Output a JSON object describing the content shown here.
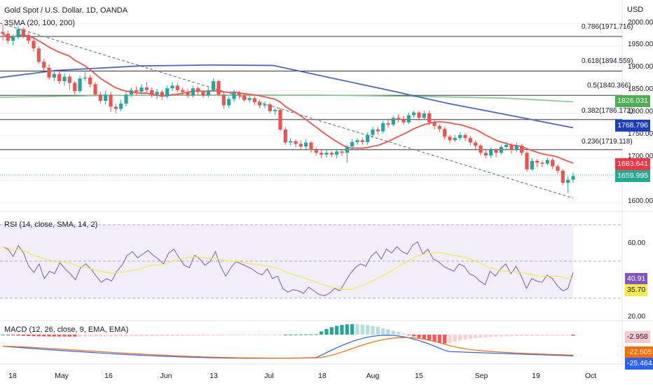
{
  "header": {
    "title": "Gold Spot / U.S. Dollar, 1D, OANDA",
    "indicator": "3SMA (20, 100, 200)",
    "currency": "USD"
  },
  "price_axis": [
    "2000.000",
    "1950.000",
    "1900.000",
    "1850.000",
    "1800.000",
    "1750.000",
    "1700.000",
    "1600.000"
  ],
  "fib_levels": [
    {
      "label": "0.786(1971.716)",
      "value": 1971.716
    },
    {
      "label": "0.618(1894.559)",
      "value": 1894.559
    },
    {
      "label": "0.5(1840.366)",
      "value": 1840.366
    },
    {
      "label": "0.382(1786.172)",
      "value": 1786.172
    },
    {
      "label": "0.236(1719.118)",
      "value": 1719.118
    }
  ],
  "tags": {
    "sma200": {
      "text": "1826.031",
      "color": "#4caf50"
    },
    "sma100": {
      "text": "1768.796",
      "color": "#1e3fbe"
    },
    "sma20": {
      "text": "1683.641",
      "color": "#f23645"
    },
    "price": {
      "text": "1659.995",
      "color": "#22ab94"
    },
    "rsi": {
      "text": "40.91",
      "color": "#7e57c2"
    },
    "rsi_ma": {
      "text": "35.70",
      "color": "#f5e94c"
    },
    "macd_hist": {
      "text": "-2.958",
      "color": "#f8c9d0"
    },
    "signal": {
      "text": "-22.505",
      "color": "#ff6d00"
    },
    "macd": {
      "text": "-25.464",
      "color": "#2962ff"
    }
  },
  "rsi": {
    "label": "RSI (14, close, SMA, 14, 2)",
    "axis": [
      "60.00",
      "20.00"
    ]
  },
  "macd": {
    "label": "MACD (12, 26, close, 9, EMA, EMA)"
  },
  "dates": [
    "18",
    "May",
    "16",
    "Jun",
    "13",
    "Jul",
    "18",
    "Aug",
    "15",
    "Sep",
    "19",
    "Oct"
  ],
  "colors": {
    "up": "#26a69a",
    "down": "#ef5350",
    "sma20": "#f05350",
    "sma100": "#4a67c8",
    "sma200": "#81c784"
  },
  "chart_data": {
    "type": "candlestick",
    "candles": [
      [
        1982,
        1978,
        1998,
        1962
      ],
      [
        1978,
        1962,
        1985,
        1955
      ],
      [
        1962,
        1970,
        1976,
        1952
      ],
      [
        1970,
        1988,
        1995,
        1965
      ],
      [
        1988,
        1975,
        1992,
        1968
      ],
      [
        1975,
        1962,
        1980,
        1955
      ],
      [
        1962,
        1945,
        1968,
        1938
      ],
      [
        1945,
        1915,
        1950,
        1910
      ],
      [
        1915,
        1902,
        1922,
        1895
      ],
      [
        1902,
        1880,
        1910,
        1875
      ],
      [
        1880,
        1888,
        1894,
        1872
      ],
      [
        1888,
        1872,
        1896,
        1866
      ],
      [
        1872,
        1882,
        1890,
        1862
      ],
      [
        1882,
        1868,
        1888,
        1852
      ],
      [
        1868,
        1850,
        1872,
        1842
      ],
      [
        1850,
        1878,
        1884,
        1846
      ],
      [
        1878,
        1880,
        1892,
        1872
      ],
      [
        1880,
        1865,
        1886,
        1858
      ],
      [
        1865,
        1842,
        1870,
        1838
      ],
      [
        1842,
        1828,
        1848,
        1822
      ],
      [
        1828,
        1842,
        1850,
        1820
      ],
      [
        1842,
        1815,
        1848,
        1804
      ],
      [
        1815,
        1810,
        1822,
        1800
      ],
      [
        1810,
        1822,
        1830,
        1805
      ],
      [
        1822,
        1842,
        1848,
        1816
      ],
      [
        1842,
        1852,
        1858,
        1836
      ],
      [
        1852,
        1848,
        1860,
        1840
      ],
      [
        1848,
        1858,
        1865,
        1842
      ],
      [
        1858,
        1852,
        1870,
        1845
      ],
      [
        1852,
        1842,
        1858,
        1835
      ],
      [
        1842,
        1848,
        1855,
        1832
      ],
      [
        1848,
        1838,
        1852,
        1830
      ],
      [
        1838,
        1856,
        1862,
        1834
      ],
      [
        1856,
        1862,
        1870,
        1850
      ],
      [
        1862,
        1852,
        1868,
        1846
      ],
      [
        1852,
        1848,
        1858,
        1840
      ],
      [
        1848,
        1840,
        1855,
        1835
      ],
      [
        1840,
        1856,
        1862,
        1836
      ],
      [
        1856,
        1848,
        1860,
        1842
      ],
      [
        1848,
        1840,
        1852,
        1835
      ],
      [
        1840,
        1852,
        1858,
        1835
      ],
      [
        1852,
        1872,
        1878,
        1848
      ],
      [
        1872,
        1842,
        1875,
        1838
      ],
      [
        1842,
        1818,
        1846,
        1810
      ],
      [
        1818,
        1832,
        1838,
        1812
      ],
      [
        1832,
        1846,
        1852,
        1826
      ],
      [
        1846,
        1840,
        1850,
        1832
      ],
      [
        1840,
        1830,
        1845,
        1826
      ],
      [
        1830,
        1834,
        1840,
        1824
      ],
      [
        1834,
        1825,
        1838,
        1818
      ],
      [
        1825,
        1818,
        1830,
        1812
      ],
      [
        1818,
        1820,
        1826,
        1812
      ],
      [
        1820,
        1805,
        1824,
        1800
      ],
      [
        1805,
        1808,
        1812,
        1796
      ],
      [
        1808,
        1764,
        1812,
        1760
      ],
      [
        1764,
        1735,
        1770,
        1730
      ],
      [
        1735,
        1738,
        1745,
        1728
      ],
      [
        1738,
        1732,
        1742,
        1725
      ],
      [
        1732,
        1726,
        1740,
        1720
      ],
      [
        1726,
        1735,
        1742,
        1720
      ],
      [
        1735,
        1718,
        1738,
        1712
      ],
      [
        1718,
        1712,
        1724,
        1706
      ],
      [
        1712,
        1708,
        1718,
        1700
      ],
      [
        1708,
        1712,
        1718,
        1702
      ],
      [
        1712,
        1708,
        1716,
        1702
      ],
      [
        1708,
        1715,
        1720,
        1700
      ],
      [
        1715,
        1712,
        1718,
        1705
      ],
      [
        1712,
        1726,
        1730,
        1690
      ],
      [
        1726,
        1736,
        1742,
        1720
      ],
      [
        1736,
        1740,
        1745,
        1730
      ],
      [
        1740,
        1736,
        1746,
        1730
      ],
      [
        1736,
        1752,
        1758,
        1730
      ],
      [
        1752,
        1764,
        1770,
        1745
      ],
      [
        1764,
        1760,
        1770,
        1752
      ],
      [
        1760,
        1778,
        1784,
        1755
      ],
      [
        1778,
        1775,
        1786,
        1768
      ],
      [
        1775,
        1790,
        1795,
        1770
      ],
      [
        1790,
        1788,
        1798,
        1780
      ],
      [
        1788,
        1780,
        1795,
        1775
      ],
      [
        1780,
        1796,
        1802,
        1776
      ],
      [
        1796,
        1802,
        1806,
        1790
      ],
      [
        1802,
        1790,
        1806,
        1784
      ],
      [
        1790,
        1800,
        1806,
        1786
      ],
      [
        1800,
        1780,
        1806,
        1774
      ],
      [
        1780,
        1772,
        1786,
        1764
      ],
      [
        1772,
        1765,
        1776,
        1758
      ],
      [
        1765,
        1748,
        1770,
        1742
      ],
      [
        1748,
        1740,
        1752,
        1734
      ],
      [
        1740,
        1745,
        1752,
        1736
      ],
      [
        1745,
        1752,
        1758,
        1740
      ],
      [
        1752,
        1745,
        1756,
        1738
      ],
      [
        1745,
        1735,
        1750,
        1728
      ],
      [
        1735,
        1728,
        1740,
        1720
      ],
      [
        1728,
        1712,
        1732,
        1706
      ],
      [
        1712,
        1706,
        1718,
        1700
      ],
      [
        1706,
        1718,
        1724,
        1700
      ],
      [
        1718,
        1712,
        1722,
        1702
      ],
      [
        1712,
        1725,
        1730,
        1708
      ],
      [
        1725,
        1730,
        1736,
        1718
      ],
      [
        1730,
        1718,
        1734,
        1710
      ],
      [
        1718,
        1728,
        1735,
        1714
      ],
      [
        1728,
        1712,
        1732,
        1706
      ],
      [
        1712,
        1675,
        1716,
        1670
      ],
      [
        1675,
        1694,
        1700,
        1672
      ],
      [
        1694,
        1690,
        1698,
        1680
      ],
      [
        1690,
        1688,
        1695,
        1680
      ],
      [
        1688,
        1696,
        1702,
        1684
      ],
      [
        1696,
        1682,
        1700,
        1676
      ],
      [
        1682,
        1672,
        1686,
        1665
      ],
      [
        1672,
        1645,
        1676,
        1640
      ],
      [
        1645,
        1652,
        1660,
        1622
      ],
      [
        1652,
        1660,
        1668,
        1645
      ]
    ]
  }
}
